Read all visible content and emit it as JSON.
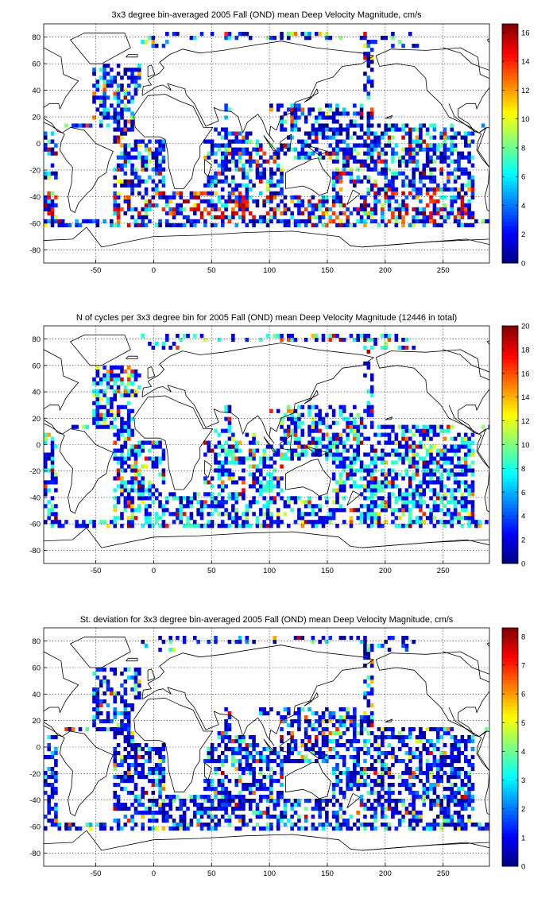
{
  "chart_data": [
    {
      "type": "heatmap",
      "title": "3x3 degree bin-averaged 2005 Fall (OND) mean Deep Velocity Magnitude, cm/s",
      "x_ticks": [
        -50,
        0,
        50,
        100,
        150,
        200,
        250
      ],
      "y_ticks": [
        -80,
        -60,
        -40,
        -20,
        0,
        20,
        40,
        60,
        80
      ],
      "xlim": [
        -95,
        290
      ],
      "ylim": [
        -90,
        90
      ],
      "grid": true,
      "colorbar": {
        "ticks": [
          0,
          2,
          4,
          6,
          8,
          10,
          12,
          14,
          16
        ],
        "range": [
          0,
          16.6
        ],
        "colormap": "jet"
      },
      "bin_size_deg": 3,
      "style": "speed",
      "seed": 11
    },
    {
      "type": "heatmap",
      "title": "N of cycles per 3x3 degree bin for 2005 Fall (OND) mean Deep Velocity Magnitude (12446 in total)",
      "x_ticks": [
        -50,
        0,
        50,
        100,
        150,
        200,
        250
      ],
      "y_ticks": [
        -80,
        -60,
        -40,
        -20,
        0,
        20,
        40,
        60,
        80
      ],
      "xlim": [
        -95,
        290
      ],
      "ylim": [
        -90,
        90
      ],
      "grid": true,
      "colorbar": {
        "ticks": [
          0,
          2,
          4,
          6,
          8,
          10,
          12,
          14,
          16,
          18,
          20
        ],
        "range": [
          0,
          20
        ],
        "colormap": "jet"
      },
      "bin_size_deg": 3,
      "style": "count",
      "seed": 23
    },
    {
      "type": "heatmap",
      "title": "St. deviation for 3x3 degree bin-averaged 2005 Fall (OND) mean Deep Velocity Magnitude, cm/s",
      "x_ticks": [
        -50,
        0,
        50,
        100,
        150,
        200,
        250
      ],
      "y_ticks": [
        -80,
        -60,
        -40,
        -20,
        0,
        20,
        40,
        60,
        80
      ],
      "xlim": [
        -95,
        290
      ],
      "ylim": [
        -90,
        90
      ],
      "grid": true,
      "colorbar": {
        "ticks": [
          0,
          1,
          2,
          3,
          4,
          5,
          6,
          7,
          8
        ],
        "range": [
          0,
          8.3
        ],
        "colormap": "jet"
      },
      "bin_size_deg": 3,
      "style": "std",
      "seed": 37
    }
  ]
}
